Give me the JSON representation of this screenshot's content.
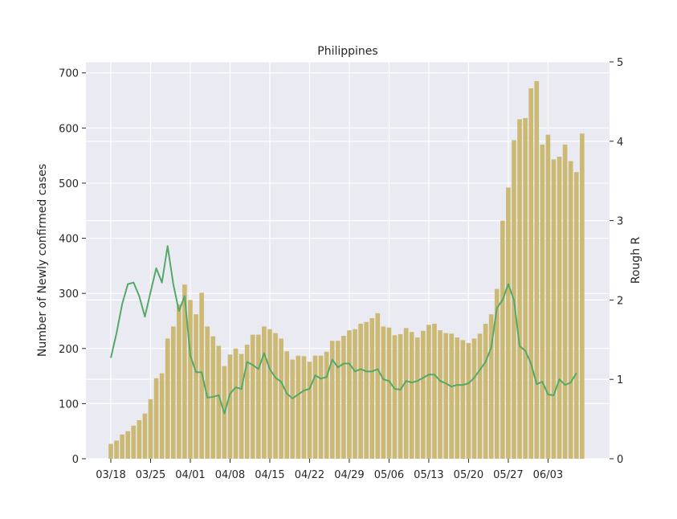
{
  "chart_data": {
    "type": "bar",
    "title": "Philippines",
    "ylabel": "Number of Newly confirmed cases",
    "y2label": "Rough R",
    "ylim": [
      0,
      720
    ],
    "y2lim": [
      0,
      5
    ],
    "yticks": [
      0,
      100,
      200,
      300,
      400,
      500,
      600,
      700
    ],
    "y2ticks": [
      0,
      1,
      2,
      3,
      4,
      5
    ],
    "grid": true,
    "x_tick_labels": [
      {
        "index": 0,
        "label": "03/18"
      },
      {
        "index": 7,
        "label": "03/25"
      },
      {
        "index": 14,
        "label": "04/01"
      },
      {
        "index": 21,
        "label": "04/08"
      },
      {
        "index": 28,
        "label": "04/15"
      },
      {
        "index": 35,
        "label": "04/22"
      },
      {
        "index": 42,
        "label": "04/29"
      },
      {
        "index": 49,
        "label": "05/06"
      },
      {
        "index": 56,
        "label": "05/13"
      },
      {
        "index": 63,
        "label": "05/20"
      },
      {
        "index": 70,
        "label": "05/27"
      },
      {
        "index": 77,
        "label": "06/03"
      }
    ],
    "series": [
      {
        "kind": "bar",
        "axis": "left",
        "color": "#ccb974",
        "values": [
          27,
          33,
          44,
          50,
          60,
          70,
          82,
          108,
          146,
          155,
          218,
          240,
          280,
          316,
          288,
          262,
          301,
          240,
          222,
          205,
          168,
          189,
          200,
          190,
          207,
          225,
          225,
          240,
          235,
          228,
          218,
          195,
          180,
          187,
          186,
          176,
          187,
          187,
          194,
          214,
          214,
          223,
          233,
          235,
          245,
          248,
          255,
          264,
          240,
          238,
          224,
          226,
          237,
          230,
          220,
          232,
          243,
          245,
          233,
          228,
          227,
          220,
          215,
          210,
          218,
          227,
          245,
          262,
          308,
          432,
          492,
          578,
          616,
          618,
          672,
          685,
          570,
          588,
          543,
          548,
          570,
          540,
          520,
          590
        ]
      },
      {
        "kind": "line",
        "axis": "right",
        "color": "#55a868",
        "values": [
          1.27,
          1.58,
          1.95,
          2.2,
          2.22,
          2.05,
          1.79,
          2.1,
          2.4,
          2.22,
          2.68,
          2.2,
          1.86,
          2.05,
          1.3,
          1.09,
          1.09,
          0.77,
          0.78,
          0.8,
          0.57,
          0.82,
          0.9,
          0.88,
          1.22,
          1.18,
          1.13,
          1.33,
          1.13,
          1.02,
          0.97,
          0.82,
          0.76,
          0.81,
          0.86,
          0.88,
          1.05,
          1.01,
          1.03,
          1.25,
          1.15,
          1.2,
          1.2,
          1.1,
          1.13,
          1.1,
          1.1,
          1.13,
          1.0,
          0.98,
          0.88,
          0.87,
          0.98,
          0.96,
          0.98,
          1.02,
          1.06,
          1.06,
          0.98,
          0.95,
          0.91,
          0.93,
          0.93,
          0.95,
          1.02,
          1.12,
          1.22,
          1.4,
          1.9,
          2.0,
          2.2,
          2.0,
          1.42,
          1.36,
          1.2,
          0.94,
          0.97,
          0.81,
          0.8,
          1.0,
          0.93,
          0.96,
          1.08
        ]
      }
    ]
  }
}
